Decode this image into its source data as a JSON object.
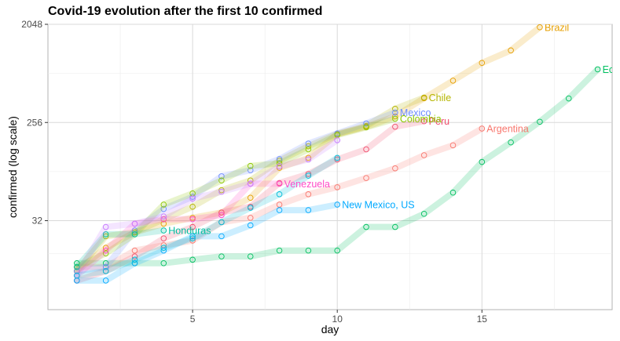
{
  "chart_data": {
    "type": "line",
    "title": "Covid-19 evolution after the first 10 confirmed",
    "xlabel": "day",
    "ylabel": "confirmed  (log scale)",
    "y_scale": "log2",
    "xlim": [
      0,
      19.5
    ],
    "ylim": [
      8,
      2048
    ],
    "x_ticks": [
      5,
      10,
      15
    ],
    "y_ticks": [
      32,
      256,
      2048
    ],
    "grid": true,
    "legend": "none",
    "series": [
      {
        "name": "Brazil",
        "color": "#E69F00",
        "label": "Brazil",
        "x": [
          1,
          2,
          3,
          4,
          5,
          6,
          7,
          8,
          9,
          10,
          11,
          12,
          13,
          14,
          15,
          16,
          17
        ],
        "y": [
          11,
          18,
          25,
          30,
          34,
          38,
          52,
          98,
          121,
          200,
          234,
          291,
          428,
          621,
          904,
          1178,
          1924
        ]
      },
      {
        "name": "Chile",
        "color": "#B5B500",
        "label": "Chile",
        "x": [
          1,
          2,
          3,
          4,
          5,
          6,
          7,
          8,
          9,
          10,
          11,
          12,
          13
        ],
        "y": [
          11,
          23,
          25,
          33,
          43,
          61,
          75,
          114,
          155,
          201,
          238,
          342,
          434
        ]
      },
      {
        "name": "Peru",
        "color": "#F0506E",
        "label": "Peru",
        "x": [
          1,
          2,
          3,
          4,
          5,
          6,
          7,
          8,
          9,
          10,
          11,
          12,
          13
        ],
        "y": [
          9,
          11,
          15,
          22,
          28,
          38,
          43,
          71,
          86,
          117,
          145,
          234,
          263
        ]
      },
      {
        "name": "Argentina",
        "color": "#F8766D",
        "label": "Argentina",
        "x": [
          1,
          2,
          3,
          4,
          5,
          6,
          7,
          8,
          9,
          10,
          11,
          12,
          13,
          14,
          15
        ],
        "y": [
          12,
          12,
          17,
          19,
          21,
          31,
          34,
          45,
          56,
          65,
          79,
          97,
          128,
          158,
          225
        ]
      },
      {
        "name": "Ecuador",
        "color": "#00C060",
        "label": "Ecuador",
        "x": [
          1,
          2,
          3,
          4,
          5,
          6,
          7,
          8,
          9,
          10,
          11,
          12,
          13,
          14,
          15,
          16,
          17,
          18,
          19
        ],
        "y": [
          13,
          13,
          13,
          13,
          14,
          15,
          15,
          17,
          17,
          17,
          28,
          28,
          37,
          58,
          111,
          168,
          260,
          426,
          789
        ]
      },
      {
        "name": "Mexico",
        "color": "#6C8CFF",
        "label": "Mexico",
        "x": [
          1,
          2,
          3,
          4,
          5,
          6,
          7,
          8,
          9,
          10,
          11,
          12
        ],
        "y": [
          11,
          12,
          26,
          41,
          53,
          82,
          93,
          118,
          164,
          203,
          251,
          316
        ]
      },
      {
        "name": "Colombia",
        "color": "#8CC800",
        "label": "Colombia",
        "x": [
          1,
          2,
          3,
          4,
          5,
          6,
          7,
          8,
          9,
          10,
          11,
          12
        ],
        "y": [
          12,
          16,
          24,
          45,
          57,
          75,
          102,
          108,
          145,
          196,
          231,
          277
        ]
      },
      {
        "name": "Venezuela",
        "color": "#FF4CC8",
        "label": "Venezuela",
        "x": [
          1,
          2,
          3,
          4,
          5,
          6,
          7,
          8
        ],
        "y": [
          10,
          17,
          30,
          33,
          33,
          36,
          70,
          70
        ]
      },
      {
        "name": "New Mexico, US",
        "color": "#00A9FF",
        "label": "New Mexico, US",
        "x": [
          1,
          2,
          3,
          4,
          5,
          6,
          7,
          8,
          9,
          10
        ],
        "y": [
          9,
          9,
          13,
          17,
          23,
          23,
          29,
          40,
          40,
          45
        ]
      },
      {
        "name": "Honduras",
        "color": "#00BFA0",
        "label": "Honduras",
        "x": [
          1,
          2,
          3,
          4
        ],
        "y": [
          12,
          24,
          24,
          26
        ]
      },
      {
        "name": "",
        "color": "#C77CFF",
        "label": "",
        "x": [
          1,
          2,
          3,
          4,
          5,
          6,
          7,
          8,
          9,
          10
        ],
        "y": [
          10,
          28,
          30,
          35,
          51,
          59,
          70,
          101,
          117,
          176
        ]
      },
      {
        "name": "",
        "color": "#00BCD8",
        "label": "",
        "x": [
          1,
          2,
          3,
          4,
          5,
          6,
          7,
          8,
          9,
          10
        ],
        "y": [
          10,
          11,
          14,
          18,
          22,
          31,
          42,
          56,
          83,
          121
        ]
      }
    ]
  }
}
